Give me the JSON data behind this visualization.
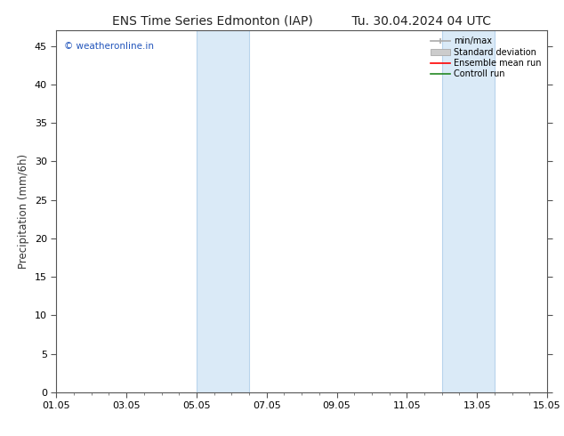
{
  "title_left": "ENS Time Series Edmonton (IAP)",
  "title_right": "Tu. 30.04.2024 04 UTC",
  "ylabel": "Precipitation (mm/6h)",
  "ylim": [
    0,
    47
  ],
  "yticks": [
    0,
    5,
    10,
    15,
    20,
    25,
    30,
    35,
    40,
    45
  ],
  "shaded_bands": [
    {
      "xstart": 4.0,
      "xend": 5.5,
      "color": "#daeaf7"
    },
    {
      "xstart": 11.0,
      "xend": 12.5,
      "color": "#daeaf7"
    }
  ],
  "band_edge_lines": [
    {
      "x": 4.0,
      "color": "#b8d4ec",
      "lw": 0.8
    },
    {
      "x": 5.5,
      "color": "#b8d4ec",
      "lw": 0.8
    },
    {
      "x": 11.0,
      "color": "#b8d4ec",
      "lw": 0.8
    },
    {
      "x": 12.5,
      "color": "#b8d4ec",
      "lw": 0.8
    }
  ],
  "xlim": [
    0,
    14
  ],
  "xtick_positions": [
    0,
    2,
    4,
    6,
    8,
    10,
    12,
    14
  ],
  "xtick_labels": [
    "01.05",
    "03.05",
    "05.05",
    "07.05",
    "09.05",
    "11.05",
    "13.05",
    "15.05"
  ],
  "watermark_text": "© weatheronline.in",
  "watermark_color": "#2255bb",
  "background_color": "#ffffff",
  "spine_color": "#555555",
  "tick_color": "#555555",
  "title_fontsize": 10,
  "tick_fontsize": 8,
  "ylabel_fontsize": 8.5,
  "legend_minmax_color": "#aaaaaa",
  "legend_stddev_color": "#cccccc",
  "legend_ens_color": "#ff0000",
  "legend_ctrl_color": "#228822"
}
